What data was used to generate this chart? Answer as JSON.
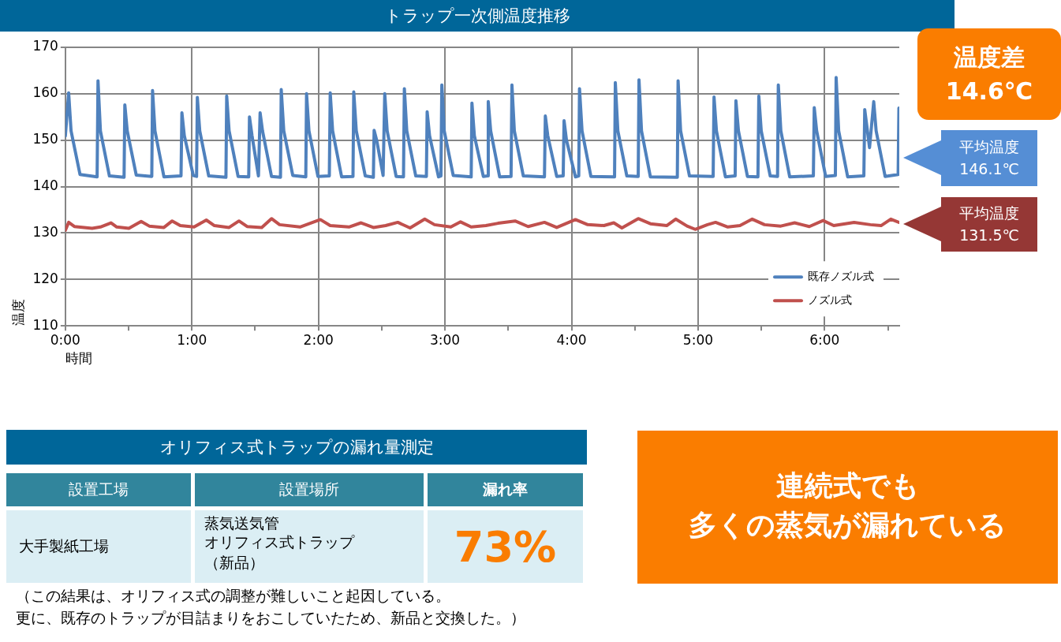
{
  "chart_data": {
    "type": "line",
    "title": "トラップ一次側温度推移",
    "xlabel": "時間",
    "ylabel": "温度",
    "xlim": [
      0,
      6.59
    ],
    "xticks": [
      {
        "value": 0,
        "label": "0:00"
      },
      {
        "value": 0.5,
        "label": null
      },
      {
        "value": 1,
        "label": "1:00"
      },
      {
        "value": 1.5,
        "label": null
      },
      {
        "value": 2,
        "label": "2:00"
      },
      {
        "value": 2.5,
        "label": null
      },
      {
        "value": 3,
        "label": "3:00"
      },
      {
        "value": 3.5,
        "label": null
      },
      {
        "value": 4,
        "label": "4:00"
      },
      {
        "value": 4.5,
        "label": null
      },
      {
        "value": 5,
        "label": "5:00"
      },
      {
        "value": 5.5,
        "label": null
      },
      {
        "value": 6,
        "label": "6:00"
      },
      {
        "value": 6.5,
        "label": null
      }
    ],
    "ylim": [
      110,
      170
    ],
    "yticks": [
      110,
      120,
      130,
      140,
      150,
      160,
      170
    ],
    "grid": true,
    "legend": "bottom right",
    "series": [
      {
        "name": "既存ノズル式",
        "color": "#4f81bd",
        "x": [
          0,
          0.026,
          0.045,
          0.116,
          0.251,
          0.258,
          0.277,
          0.348,
          0.464,
          0.47,
          0.489,
          0.56,
          0.683,
          0.689,
          0.708,
          0.779,
          0.914,
          0.921,
          0.94,
          1.011,
          1.037,
          1.043,
          1.062,
          1.133,
          1.269,
          1.275,
          1.294,
          1.365,
          1.449,
          1.455,
          1.475,
          1.526,
          1.539,
          1.558,
          1.629,
          1.7,
          1.706,
          1.726,
          1.797,
          1.9,
          1.906,
          1.925,
          1.996,
          2.086,
          2.093,
          2.112,
          2.183,
          2.273,
          2.279,
          2.299,
          2.37,
          2.434,
          2.44,
          2.46,
          2.511,
          2.524,
          2.543,
          2.614,
          2.672,
          2.679,
          2.698,
          2.769,
          2.853,
          2.859,
          2.878,
          2.949,
          2.968,
          2.975,
          2.994,
          3.065,
          3.207,
          3.213,
          3.232,
          3.303,
          3.336,
          3.342,
          3.361,
          3.432,
          3.522,
          3.529,
          3.548,
          3.619,
          3.786,
          3.793,
          3.812,
          3.883,
          3.934,
          3.941,
          3.96,
          4.031,
          4.057,
          4.063,
          4.083,
          4.153,
          4.34,
          4.346,
          4.366,
          4.437,
          4.527,
          4.533,
          4.553,
          4.623,
          4.836,
          4.842,
          4.862,
          4.932,
          5.119,
          5.126,
          5.145,
          5.216,
          5.293,
          5.299,
          5.319,
          5.39,
          5.473,
          5.48,
          5.499,
          5.57,
          5.628,
          5.634,
          5.654,
          5.724,
          5.911,
          5.918,
          5.937,
          6.008,
          6.085,
          6.091,
          6.111,
          6.182,
          6.31,
          6.317,
          6.355,
          6.388,
          6.407,
          6.478,
          6.581,
          6.587
        ],
        "values": [
          150.9,
          160.2,
          152,
          142.6,
          142.1,
          162.8,
          152,
          142.3,
          142,
          157.6,
          152,
          142.5,
          142.2,
          160.7,
          152,
          142.1,
          142.3,
          155.9,
          151,
          142.4,
          142.2,
          159.2,
          152,
          142.3,
          142,
          159.5,
          152,
          142.2,
          142.1,
          155.0,
          151,
          142.3,
          155.9,
          152,
          142.2,
          142,
          160.9,
          152,
          142.4,
          142.1,
          160.0,
          152,
          142.2,
          142.3,
          160.2,
          152,
          142.1,
          142.2,
          160.4,
          152,
          142.3,
          142,
          152.1,
          150,
          142.4,
          160.0,
          152,
          142.2,
          142.1,
          161.1,
          152,
          142.3,
          142.2,
          156.1,
          151,
          142.1,
          142.3,
          161.9,
          152,
          142.4,
          142.1,
          158.0,
          151,
          142.2,
          142.3,
          158.3,
          152,
          142.1,
          142.2,
          161.9,
          152,
          142.3,
          142.1,
          155.2,
          151,
          142.2,
          142.3,
          154.2,
          150,
          142.1,
          142.3,
          161.1,
          152,
          142.2,
          142.1,
          162.4,
          152,
          142.3,
          142.2,
          163.0,
          152,
          142.1,
          142,
          162.8,
          152,
          142.3,
          142.2,
          159.3,
          152,
          142.1,
          142.3,
          158.5,
          152,
          142.2,
          142.1,
          159.5,
          152,
          142.3,
          142.2,
          161.9,
          152,
          142.1,
          142.3,
          157.0,
          152,
          142.2,
          142.4,
          163.5,
          152,
          142.1,
          142.3,
          156.6,
          148.4,
          158.3,
          152,
          142.2,
          142.6,
          156.9
        ]
      },
      {
        "name": "ノズル式",
        "color": "#c0504d",
        "x": [
          0,
          0.026,
          0.071,
          0.212,
          0.277,
          0.361,
          0.406,
          0.502,
          0.599,
          0.663,
          0.779,
          0.844,
          0.908,
          1.017,
          1.114,
          1.178,
          1.294,
          1.372,
          1.436,
          1.552,
          1.629,
          1.693,
          1.854,
          2.015,
          2.093,
          2.241,
          2.337,
          2.434,
          2.531,
          2.627,
          2.724,
          2.84,
          2.917,
          3.046,
          3.123,
          3.207,
          3.323,
          3.419,
          3.554,
          3.657,
          3.786,
          3.883,
          4.031,
          4.128,
          4.256,
          4.334,
          4.398,
          4.527,
          4.623,
          4.752,
          4.823,
          4.913,
          4.977,
          5.074,
          5.138,
          5.235,
          5.331,
          5.428,
          5.525,
          5.654,
          5.763,
          5.879,
          5.988,
          6.072,
          6.233,
          6.362,
          6.446,
          6.523,
          6.587
        ],
        "values": [
          130.6,
          132.3,
          131.4,
          131.0,
          131.3,
          132.2,
          131.3,
          131.0,
          132.5,
          131.5,
          131.2,
          132.6,
          131.6,
          131.3,
          132.8,
          131.6,
          131.2,
          132.6,
          131.4,
          131.2,
          133.1,
          131.8,
          131.3,
          132.9,
          131.6,
          131.3,
          132.2,
          131.2,
          131.6,
          132.3,
          131.1,
          133.0,
          131.8,
          131.3,
          132.4,
          131.3,
          131.6,
          132.1,
          132.6,
          131.4,
          132.3,
          131.2,
          132.9,
          131.8,
          131.6,
          132.2,
          131.1,
          133.1,
          132.0,
          131.6,
          133.0,
          131.5,
          130.8,
          131.8,
          132.3,
          131.3,
          131.6,
          133.0,
          131.8,
          131.5,
          132.2,
          131.4,
          132.7,
          131.6,
          132.3,
          131.8,
          131.6,
          133.0,
          132.3
        ]
      }
    ],
    "annotations": [
      "温度差\n14.6℃",
      "平均温度\n146.1℃",
      "平均温度\n131.5℃",
      "オリフィス式トラップの漏れ量測定",
      "設置工場",
      "設置場所",
      "漏れ率",
      "大手製紙工場",
      "蒸気送気管",
      "オリフィス式トラップ",
      "（新品）",
      "73%",
      "（この結果は、オリフィス式の調整が難しいこと起因している。",
      "更に、既存のトラップが目詰まりをおこしていたため、新品と交換した。）",
      "連続式でも",
      "多くの蒸気が漏れている"
    ]
  }
}
